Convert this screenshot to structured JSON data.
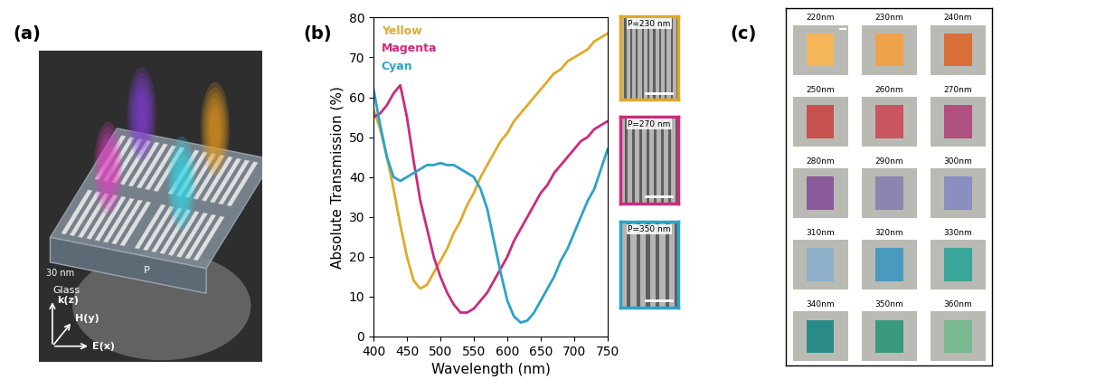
{
  "chart_data": {
    "type": "line",
    "xlabel": "Wavelength (nm)",
    "ylabel": "Absolute Transmission (%)",
    "x": [
      400,
      410,
      420,
      430,
      440,
      450,
      460,
      470,
      480,
      490,
      500,
      510,
      520,
      530,
      540,
      550,
      560,
      570,
      580,
      590,
      600,
      610,
      620,
      630,
      640,
      650,
      660,
      670,
      680,
      690,
      700,
      710,
      720,
      730,
      740,
      750
    ],
    "series": [
      {
        "name": "Yellow",
        "color": "#e0a92a",
        "values": [
          57,
          52,
          45,
          37,
          28,
          20,
          14,
          12,
          13,
          16,
          19,
          22,
          26,
          29,
          33,
          36,
          40,
          43,
          46,
          49,
          51,
          54,
          56,
          58,
          60,
          62,
          64,
          66,
          67,
          69,
          70,
          71,
          72,
          74,
          75,
          76
        ]
      },
      {
        "name": "Magenta",
        "color": "#cc2a7e",
        "values": [
          55,
          56,
          58,
          61,
          63,
          55,
          44,
          34,
          27,
          20,
          15,
          11,
          8,
          6,
          6,
          7,
          9,
          11,
          14,
          17,
          20,
          24,
          27,
          30,
          33,
          36,
          38,
          41,
          43,
          45,
          47,
          49,
          50,
          52,
          53,
          54
        ]
      },
      {
        "name": "Cyan",
        "color": "#2ba3c9",
        "values": [
          62,
          53,
          45,
          40,
          39,
          40,
          41,
          42,
          43,
          43,
          43.5,
          43,
          43,
          42,
          41,
          40,
          37,
          32,
          24,
          16,
          9,
          5,
          3.5,
          4,
          6,
          9,
          12,
          15,
          19,
          22,
          26,
          30,
          34,
          37,
          42,
          47
        ]
      }
    ],
    "xlim": [
      400,
      750
    ],
    "xticks": [
      400,
      450,
      500,
      550,
      600,
      650,
      700,
      750
    ],
    "ylim": [
      0,
      80
    ],
    "yticks": [
      0,
      10,
      20,
      30,
      40,
      50,
      60,
      70,
      80
    ],
    "legend": "upper left"
  },
  "panel_labels": {
    "a": "(a)",
    "b": "(b)",
    "c": "(c)"
  },
  "schematic": {
    "thickness_label": "30 nm",
    "substrate_label": "Glass",
    "period_label": "P",
    "axis_labels": {
      "z": "k(z)",
      "y": "H(y)",
      "x": "E(x)"
    }
  },
  "sem_insets": [
    {
      "label": "P=230 nm",
      "color": "#e0a92a"
    },
    {
      "label": "P=270 nm",
      "color": "#cc2a7e"
    },
    {
      "label": "P=350 nm",
      "color": "#2ba3c9"
    }
  ],
  "color_samples": {
    "cells": [
      {
        "label": "220nm",
        "color": "#f5b65a"
      },
      {
        "label": "230nm",
        "color": "#f0a24a"
      },
      {
        "label": "240nm",
        "color": "#d9703a"
      },
      {
        "label": "250nm",
        "color": "#c8504f"
      },
      {
        "label": "260nm",
        "color": "#c95560"
      },
      {
        "label": "270nm",
        "color": "#b05080"
      },
      {
        "label": "280nm",
        "color": "#8a5a9a"
      },
      {
        "label": "290nm",
        "color": "#8d85b0"
      },
      {
        "label": "300nm",
        "color": "#8a8fc0"
      },
      {
        "label": "310nm",
        "color": "#8fb0c8"
      },
      {
        "label": "320nm",
        "color": "#4a9ac0"
      },
      {
        "label": "330nm",
        "color": "#3aa59a"
      },
      {
        "label": "340nm",
        "color": "#2a8a88"
      },
      {
        "label": "350nm",
        "color": "#3a9a80"
      },
      {
        "label": "360nm",
        "color": "#7ab890"
      }
    ]
  }
}
